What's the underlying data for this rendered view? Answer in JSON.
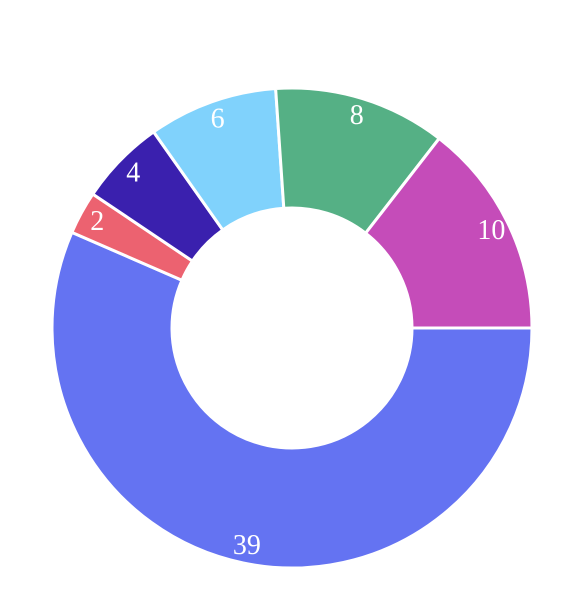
{
  "chart_data": {
    "type": "pie",
    "style": "donut",
    "start": "3 o'clock",
    "direction": "clockwise",
    "legend": "none",
    "values": [
      39,
      2,
      4,
      6,
      8,
      10
    ],
    "labels": [
      "39",
      "2",
      "4",
      "6",
      "8",
      "10"
    ],
    "colors": [
      "#6473f2",
      "#ec6270",
      "#3a20ae",
      "#80d2fc",
      "#55b085",
      "#c54cb9"
    ]
  }
}
